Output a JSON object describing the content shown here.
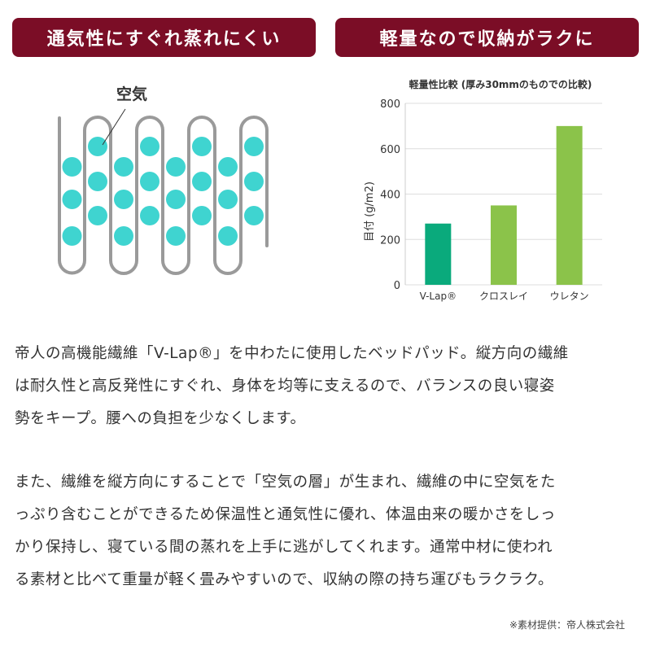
{
  "banners": {
    "left": "通気性にすぐれ蒸れにくい",
    "right": "軽量なので収納がラクに"
  },
  "diagram": {
    "label": "空気",
    "colors": {
      "fiber": "#9a9a9a",
      "air": "#3fd4d0"
    }
  },
  "chart_data": {
    "type": "bar",
    "title": "軽量性比較 (厚み30mmのものでの比較)",
    "ylabel": "目付 (g/m2)",
    "xlabel": "",
    "categories": [
      "V-Lap®",
      "クロスレイ",
      "ウレタン"
    ],
    "values": [
      270,
      350,
      700
    ],
    "colors": [
      "#0aaa7c",
      "#8bc34a",
      "#8bc34a"
    ],
    "ylim": [
      0,
      800
    ],
    "yticks": [
      0,
      200,
      400,
      600,
      800
    ],
    "grid": true
  },
  "paragraphs": [
    [
      "帝人の高機能繊維「V-Lap®」を中わたに使用したベッドパッド。縦方向の繊維",
      "は耐久性と高反発性にすぐれ、身体を均等に支えるので、バランスの良い寝姿",
      "勢をキープ。腰への負担を少なくします。"
    ],
    [
      "また、繊維を縦方向にすることで「空気の層」が生まれ、繊維の中に空気をた",
      "っぷり含むことができるため保温性と通気性に優れ、体温由来の暖かさをしっ",
      "かり保持し、寝ている間の蒸れを上手に逃がしてくれます。通常中材に使われ",
      "る素材と比べて重量が軽く畳みやすいので、収納の際の持ち運びもラクラク。"
    ]
  ],
  "credit": "※素材提供：帝人株式会社"
}
